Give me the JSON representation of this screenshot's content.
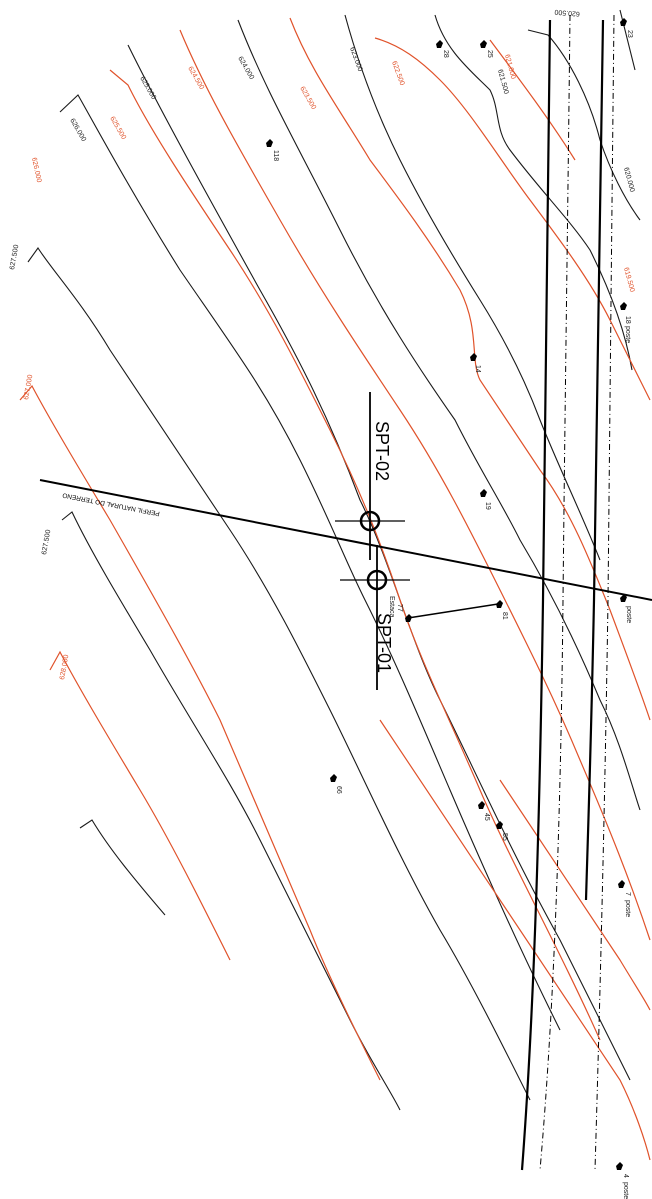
{
  "contour_labels": {
    "l_628000": "628.000",
    "l_627500a": "627.500",
    "l_627000a": "627.000",
    "l_627500b": "627.500",
    "l_626000a": "626.000",
    "l_625500": "625.500",
    "l_625000a": "625.000",
    "l_624500": "624.500",
    "l_624000a": "624.000",
    "l_623500": "623.500",
    "l_623000": "623.000",
    "l_622500": "622.500",
    "l_621500": "621.500",
    "l_621000": "621.000",
    "l_620500": "620.500",
    "l_620000": "620.000",
    "l_619500": "619.500",
    "l_619000": "619.000",
    "l_626000b": "626.000"
  },
  "points": {
    "p118": "118",
    "p28": "28",
    "p25": "25",
    "p23": "23",
    "p14": "14",
    "p19": "19",
    "p18": "18",
    "p81": "81",
    "p77": "77",
    "p66": "66",
    "p45": "45",
    "p55": "55",
    "p7": "7",
    "p4": "4",
    "poste": "poste",
    "estaca": "Estaca"
  },
  "spt": {
    "spt01": "SPT-01",
    "spt02": "SPT-02"
  },
  "profile_label": "PERFIL NATURAL DO TERRENO"
}
